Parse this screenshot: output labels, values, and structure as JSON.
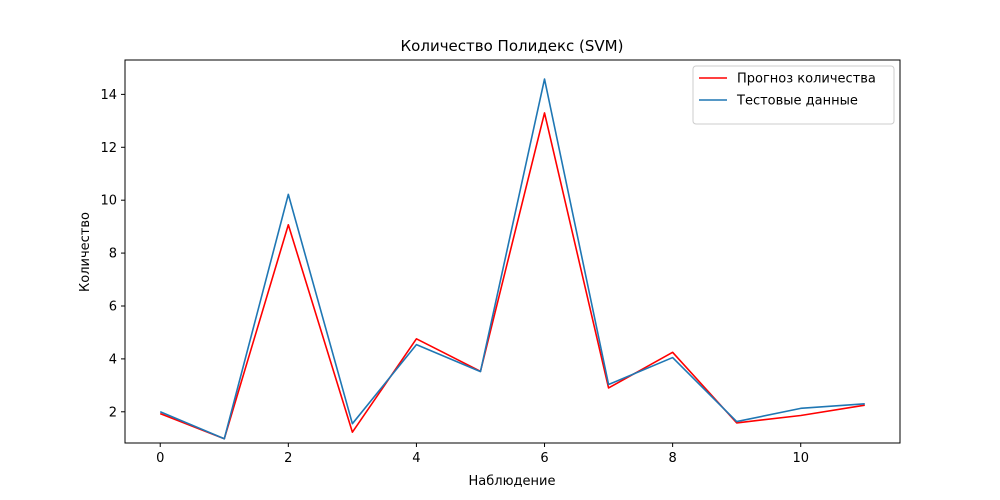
{
  "chart_data": {
    "type": "line",
    "title": "Количество Полидекс (SVM)",
    "xlabel": "Наблюдение",
    "ylabel": "Количество",
    "xlim": [
      -0.55,
      11.55
    ],
    "ylim": [
      0.82,
      15.3
    ],
    "xticks": [
      0,
      2,
      4,
      6,
      8,
      10
    ],
    "yticks": [
      2,
      4,
      6,
      8,
      10,
      12,
      14
    ],
    "grid": false,
    "legend_position": "top-right",
    "x": [
      0,
      1,
      2,
      3,
      4,
      5,
      6,
      7,
      8,
      9,
      10,
      11
    ],
    "series": [
      {
        "name": "Прогноз количества",
        "color": "#ff0000",
        "values": [
          1.93,
          0.98,
          9.07,
          1.23,
          4.76,
          3.53,
          13.3,
          2.9,
          4.25,
          1.58,
          1.86,
          2.25
        ]
      },
      {
        "name": "Тестовые данные",
        "color": "#1f77b4",
        "values": [
          2.0,
          0.98,
          10.22,
          1.55,
          4.54,
          3.52,
          14.58,
          3.03,
          4.05,
          1.63,
          2.13,
          2.3
        ]
      }
    ]
  }
}
